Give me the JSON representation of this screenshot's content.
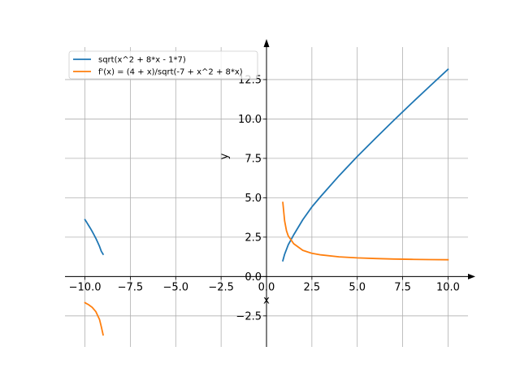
{
  "chart_data": {
    "type": "line",
    "xlabel": "x",
    "ylabel": "y",
    "xlim": [
      -11.1,
      11.1
    ],
    "ylim": [
      -4.47,
      14.56
    ],
    "grid": true,
    "legend_position": "top-left",
    "x_ticks": [
      -10,
      -7.5,
      -5,
      -2.5,
      0,
      2.5,
      5,
      7.5,
      10
    ],
    "x_tick_labels": [
      "−10.0",
      "−7.5",
      "−5.0",
      "−2.5",
      "0.0",
      "2.5",
      "5.0",
      "7.5",
      "10.0"
    ],
    "y_ticks": [
      -2.5,
      0,
      2.5,
      5,
      7.5,
      10,
      12.5
    ],
    "y_tick_labels": [
      "−2.5",
      "0.0",
      "2.5",
      "5.0",
      "7.5",
      "10.0",
      "12.5"
    ],
    "series": [
      {
        "name": "sqrt(x^2 + 8*x - 1*7)",
        "color": "#1f77b4",
        "segments": [
          [
            [
              -10,
              3.606
            ],
            [
              -9.9,
              3.43
            ],
            [
              -9.8,
              3.247
            ],
            [
              -9.7,
              3.056
            ],
            [
              -9.6,
              2.857
            ],
            [
              -9.5,
              2.646
            ],
            [
              -9.4,
              2.421
            ],
            [
              -9.3,
              2.177
            ],
            [
              -9.2,
              1.908
            ],
            [
              -9.1,
              1.6
            ],
            [
              -9.0,
              1.414
            ]
          ],
          [
            [
              0.9,
              1.0
            ],
            [
              1.0,
              1.414
            ],
            [
              1.2,
              2.02
            ],
            [
              1.5,
              2.646
            ],
            [
              2.0,
              3.606
            ],
            [
              2.5,
              4.42
            ],
            [
              3.0,
              5.099
            ],
            [
              4.0,
              6.403
            ],
            [
              5.0,
              7.616
            ],
            [
              6.0,
              8.775
            ],
            [
              7.0,
              9.899
            ],
            [
              8.0,
              11.0
            ],
            [
              9.0,
              12.083
            ],
            [
              10.0,
              13.153
            ]
          ]
        ]
      },
      {
        "name": "f'(x) = (4 + x)/sqrt(-7 + x^2 + 8*x)",
        "color": "#ff7f0e",
        "segments": [
          [
            [
              -10,
              -1.664
            ],
            [
              -9.8,
              -1.786
            ],
            [
              -9.6,
              -1.96
            ],
            [
              -9.4,
              -2.23
            ],
            [
              -9.2,
              -2.725
            ],
            [
              -9.1,
              -3.19
            ],
            [
              -9.0,
              -3.7
            ]
          ],
          [
            [
              0.9,
              4.7
            ],
            [
              1.0,
              3.536
            ],
            [
              1.1,
              2.9
            ],
            [
              1.2,
              2.574
            ],
            [
              1.5,
              2.079
            ],
            [
              2.0,
              1.664
            ],
            [
              2.5,
              1.47
            ],
            [
              3.0,
              1.373
            ],
            [
              4.0,
              1.249
            ],
            [
              5.0,
              1.182
            ],
            [
              6.0,
              1.14
            ],
            [
              7.0,
              1.111
            ],
            [
              8.0,
              1.091
            ],
            [
              9.0,
              1.076
            ],
            [
              10.0,
              1.064
            ]
          ]
        ]
      }
    ]
  }
}
